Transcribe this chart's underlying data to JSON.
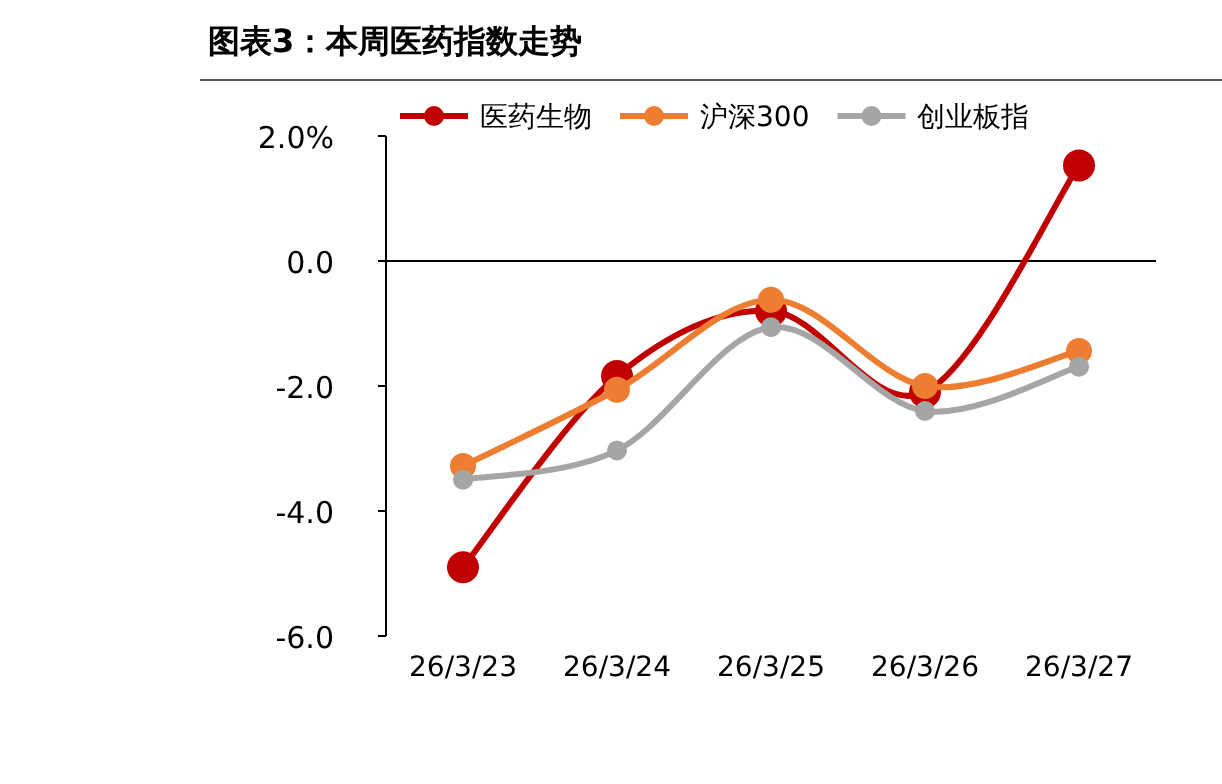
{
  "chart_data": {
    "type": "line",
    "title": "图表3：本周医药指数走势",
    "categories": [
      "26/3/23",
      "26/3/24",
      "26/3/25",
      "26/3/26",
      "26/3/27"
    ],
    "series": [
      {
        "name": "医药生物",
        "color": "#c00000",
        "values": [
          -4.9,
          -1.84,
          -0.8,
          -2.1,
          1.53
        ]
      },
      {
        "name": "沪深300",
        "color": "#ed7d31",
        "values": [
          -3.28,
          -2.06,
          -0.62,
          -2.0,
          -1.44
        ]
      },
      {
        "name": "创业板指",
        "color": "#a5a5a5",
        "values": [
          -3.5,
          -3.03,
          -1.06,
          -2.4,
          -1.69
        ]
      }
    ],
    "ylim": [
      -6,
      2
    ],
    "yticks": [
      {
        "value": 2,
        "label": "2.0%"
      },
      {
        "value": 0,
        "label": "0.0"
      },
      {
        "value": -2,
        "label": "-2.0"
      },
      {
        "value": -4,
        "label": "-4.0"
      },
      {
        "value": -6,
        "label": "-6.0"
      }
    ],
    "ref_lines": [
      {
        "axis": "y",
        "value": 0,
        "color": "#000000"
      }
    ],
    "marker": "circle",
    "legend": "top"
  }
}
